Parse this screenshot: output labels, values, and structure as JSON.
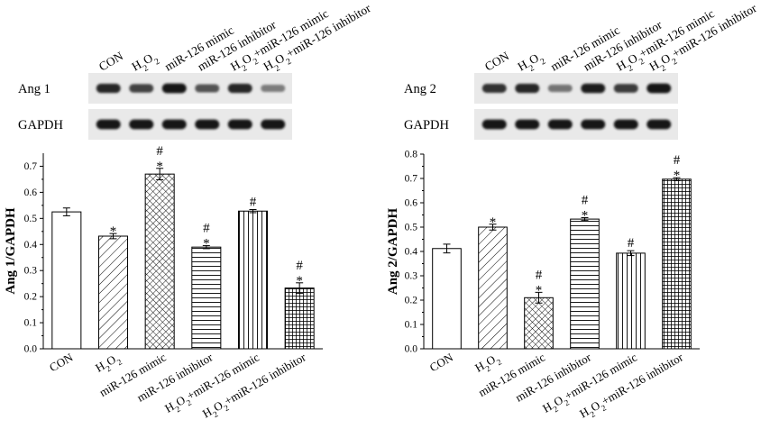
{
  "blot_left": {
    "lanes": [
      "CON",
      "H2O2",
      "miR-126 mimic",
      "miR-126 inhibitor",
      "H2O2+miR-126 mimic",
      "H2O2+miR-126 inhibitor"
    ],
    "rows": [
      {
        "label": "Ang 1",
        "intensity": [
          0.85,
          0.7,
          0.95,
          0.62,
          0.85,
          0.4
        ]
      },
      {
        "label": "GAPDH",
        "intensity": [
          0.95,
          0.95,
          0.95,
          0.95,
          0.95,
          0.95
        ]
      }
    ]
  },
  "blot_right": {
    "lanes": [
      "CON",
      "H2O2",
      "miR-126 mimic",
      "miR-126 inhibitor",
      "H2O2+miR-126 mimic",
      "H2O2+miR-126 inhibitor"
    ],
    "rows": [
      {
        "label": "Ang 2",
        "intensity": [
          0.8,
          0.85,
          0.45,
          0.9,
          0.75,
          0.95
        ]
      },
      {
        "label": "GAPDH",
        "intensity": [
          0.95,
          0.95,
          0.95,
          0.95,
          0.95,
          0.95
        ]
      }
    ]
  },
  "chart_data": [
    {
      "type": "bar",
      "ylabel": "Ang 1/GAPDH",
      "ylim": [
        0,
        0.75
      ],
      "yticks": [
        "0.0",
        "0.1",
        "0.2",
        "0.3",
        "0.4",
        "0.5",
        "0.6",
        "0.7"
      ],
      "categories": [
        "CON",
        "H2O2",
        "miR-126 mimic",
        "miR-126 inhibitor",
        "H2O2+miR-126 mimic",
        "H2O2+miR-126 inhibitor"
      ],
      "values": [
        0.525,
        0.432,
        0.67,
        0.39,
        0.528,
        0.233
      ],
      "errors": [
        0.015,
        0.01,
        0.022,
        0.006,
        0.006,
        0.02
      ],
      "patterns": [
        "none",
        "diagonal",
        "crosshatch",
        "horizontal",
        "vertical",
        "grid"
      ],
      "marks": [
        [],
        [
          "*"
        ],
        [
          "*",
          "#"
        ],
        [
          "*",
          "#"
        ],
        [
          "#"
        ],
        [
          "*",
          "#"
        ]
      ]
    },
    {
      "type": "bar",
      "ylabel": "Ang 2/GAPDH",
      "ylim": [
        0,
        0.8
      ],
      "yticks": [
        "0.0",
        "0.1",
        "0.2",
        "0.3",
        "0.4",
        "0.5",
        "0.6",
        "0.7",
        "0.8"
      ],
      "categories": [
        "CON",
        "H2O2",
        "miR-126 mimic",
        "miR-126 inhibitor",
        "H2O2+miR-126 mimic",
        "H2O2+miR-126 inhibitor"
      ],
      "values": [
        0.412,
        0.5,
        0.21,
        0.533,
        0.393,
        0.697
      ],
      "errors": [
        0.018,
        0.012,
        0.022,
        0.006,
        0.01,
        0.006
      ],
      "patterns": [
        "none",
        "diagonal",
        "crosshatch",
        "horizontal",
        "vertical",
        "grid"
      ],
      "marks": [
        [],
        [
          "*"
        ],
        [
          "*",
          "#"
        ],
        [
          "*",
          "#"
        ],
        [
          "#"
        ],
        [
          "*",
          "#"
        ]
      ]
    }
  ]
}
